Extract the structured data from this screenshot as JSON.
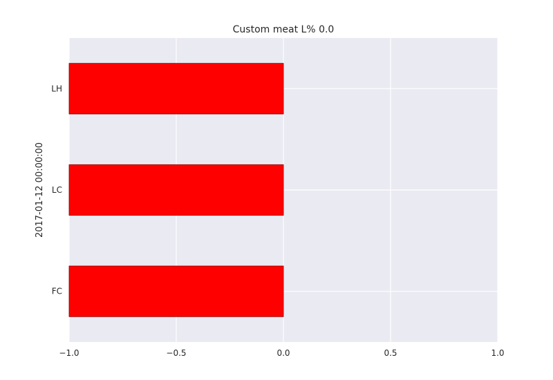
{
  "chart_data": {
    "type": "bar",
    "orientation": "horizontal",
    "title": "Custom meat L% 0.0",
    "xlabel": "",
    "ylabel": "2017-01-12 00:00:00",
    "categories": [
      "LH",
      "LC",
      "FC"
    ],
    "series": [
      {
        "values": [
          -1.0,
          -1.0,
          -1.0
        ]
      }
    ],
    "xlim": [
      -1.0,
      1.0
    ],
    "xticks": [
      -1.0,
      -0.5,
      0.0,
      0.5,
      1.0
    ],
    "xtick_labels": [
      "−1.0",
      "−0.5",
      "0.0",
      "0.5",
      "1.0"
    ],
    "grid": true,
    "colors": {
      "bar": "#ff0000",
      "bar_edge": "#8b0000",
      "plot_background": "#eaeaf2",
      "grid": "#ffffff"
    }
  }
}
